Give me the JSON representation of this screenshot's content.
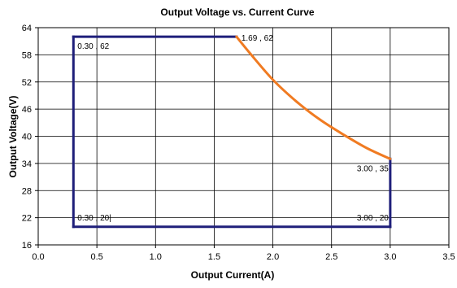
{
  "chart_data": {
    "type": "line",
    "title": "Output Voltage vs. Current Curve",
    "xlabel": "Output Current(A)",
    "ylabel": "Output Voltage(V)",
    "xlim": [
      0.0,
      3.5
    ],
    "ylim": [
      16,
      64
    ],
    "x_ticks": [
      0.0,
      0.5,
      1.0,
      1.5,
      2.0,
      2.5,
      3.0,
      3.5
    ],
    "x_tick_labels": [
      "0.0",
      "0.5",
      "1.0",
      "1.5",
      "2.0",
      "2.5",
      "3.0",
      "3.5"
    ],
    "y_ticks": [
      16,
      22,
      28,
      34,
      40,
      46,
      52,
      58,
      64
    ],
    "y_tick_labels": [
      "16",
      "22",
      "28",
      "34",
      "40",
      "46",
      "52",
      "58",
      "64"
    ],
    "grid": true,
    "legend": "none",
    "series": [
      {
        "color": "#1f1f7a",
        "x": [
          0.3,
          1.69,
          1.69,
          3.0,
          3.0,
          0.3,
          0.3
        ],
        "y": [
          62,
          62,
          62,
          35,
          20,
          20,
          62
        ],
        "segments": [
          {
            "x": [
              0.3,
              1.69
            ],
            "y": [
              62,
              62
            ]
          },
          {
            "x": [
              3.0,
              3.0
            ],
            "y": [
              35,
              20
            ]
          },
          {
            "x": [
              3.0,
              0.3
            ],
            "y": [
              20,
              20
            ]
          },
          {
            "x": [
              0.3,
              0.3
            ],
            "y": [
              20,
              62
            ]
          }
        ]
      },
      {
        "color": "#f07b22",
        "x": [
          1.69,
          1.8,
          2.0,
          2.2,
          2.4,
          2.6,
          2.8,
          3.0
        ],
        "y": [
          62,
          58.5,
          52.5,
          47.7,
          43.7,
          40.4,
          37.4,
          35
        ]
      }
    ],
    "annotations": [
      {
        "text": "0.30 , 62",
        "x": 0.3,
        "y": 62,
        "anchor": "below-right"
      },
      {
        "text": "1.69 , 62",
        "x": 1.69,
        "y": 62,
        "anchor": "right"
      },
      {
        "text": "0.30 , 20|",
        "x": 0.3,
        "y": 20,
        "anchor": "above-right"
      },
      {
        "text": "3.00 , 20",
        "x": 3.0,
        "y": 20,
        "anchor": "above-left"
      },
      {
        "text": "3.00 , 35",
        "x": 3.0,
        "y": 35,
        "anchor": "below-left"
      }
    ]
  }
}
